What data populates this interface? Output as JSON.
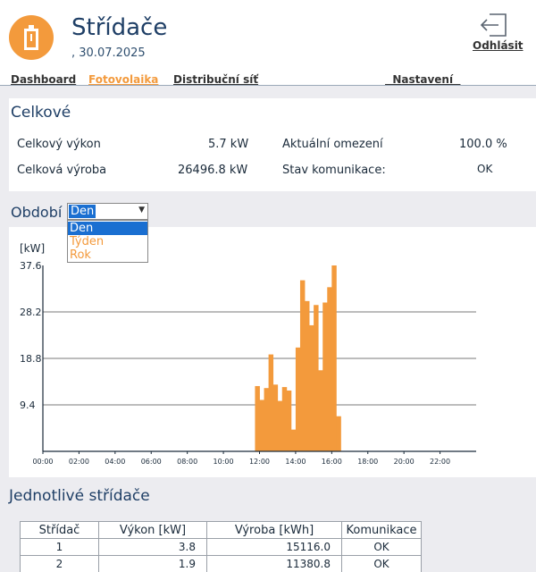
{
  "app": {
    "title": "Střídače",
    "date": ", 30.07.2025",
    "logout_label": "Odhlásit",
    "logout_icon": "logout-icon",
    "logo_icon": "battery-icon"
  },
  "nav": {
    "items": [
      {
        "label": "Dashboard",
        "active": false
      },
      {
        "label": "Fotovolaika",
        "active": true
      },
      {
        "label": "Distribuční síť",
        "active": false
      },
      {
        "label": "  Nastavení  ",
        "active": false
      }
    ]
  },
  "summary": {
    "title": "Celkové",
    "total_power_label": "Celkový výkon",
    "total_power_value": "5.7 kW",
    "total_production_label": "Celková výroba",
    "total_production_value": "26496.8 kW",
    "current_limit_label": "Aktuální omezení",
    "current_limit_value": "100.0 %",
    "comm_state_label": "Stav komunikace:",
    "comm_state_value": "OK"
  },
  "period": {
    "label": "Období",
    "selected": "Den",
    "options": [
      "Den",
      "Týden",
      "Rok"
    ]
  },
  "colors": {
    "accent": "#f39a3c",
    "primary_text": "#1f3f66",
    "selection": "#1a6fd1"
  },
  "chart_data": {
    "type": "bar",
    "ylabel": "[kW]",
    "yticks": [
      "37.6",
      "28.2",
      "18.8",
      "9.4"
    ],
    "ytick_values": [
      37.6,
      28.2,
      18.8,
      9.4
    ],
    "ylim": [
      0,
      37.6
    ],
    "xticks": [
      "00:00",
      "02:00",
      "04:00",
      "06:00",
      "08:00",
      "10:00",
      "12:00",
      "14:00",
      "16:00",
      "18:00",
      "20:00",
      "22:00"
    ],
    "xlim": [
      0,
      24
    ],
    "grid": true,
    "bar_width_hours": 0.25,
    "x": [
      11.75,
      12.0,
      12.25,
      12.5,
      12.75,
      13.0,
      13.25,
      13.5,
      13.75,
      14.0,
      14.25,
      14.5,
      14.75,
      15.0,
      15.25,
      15.5,
      15.75,
      16.0,
      16.25
    ],
    "values": [
      13.2,
      10.4,
      12.8,
      19.6,
      13.5,
      10.2,
      13.0,
      12.3,
      4.4,
      21.0,
      34.6,
      30.4,
      25.5,
      29.6,
      16.4,
      30.1,
      33.2,
      37.6,
      7.1
    ]
  },
  "inverters": {
    "title": "Jednotlivé střídače",
    "headers": [
      "Střídač",
      "Výkon [kW]",
      "Výroba [kWh]",
      "Komunikace"
    ],
    "rows": [
      [
        "1",
        "3.8",
        "15116.0",
        "OK"
      ],
      [
        "2",
        "1.9",
        "11380.8",
        "OK"
      ]
    ]
  }
}
